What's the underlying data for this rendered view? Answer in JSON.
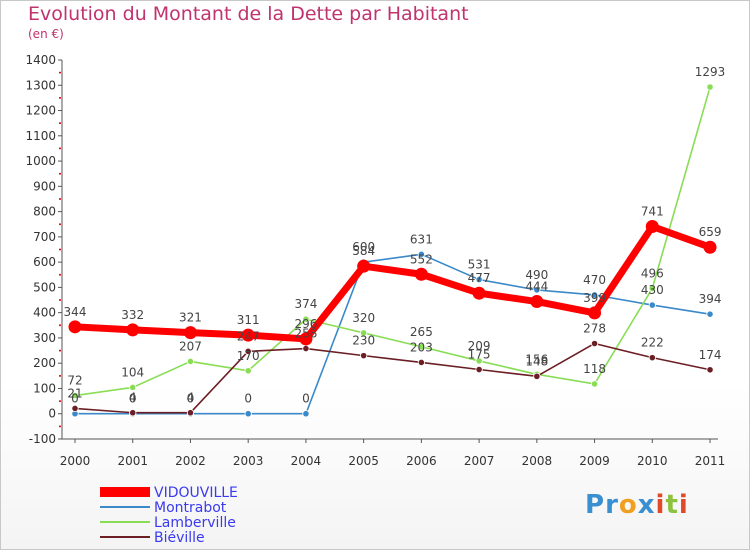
{
  "header": {
    "title": "Evolution du Montant de la Dette par Habitant",
    "subtitle": "(en €)"
  },
  "logo": {
    "text": "Proxiti",
    "letters": [
      "P",
      "r",
      "o",
      "x",
      "i",
      "t",
      "i"
    ],
    "colors": [
      "#3a8fd0",
      "#3a8fd0",
      "#f0a020",
      "#3a8fd0",
      "#e04a2a",
      "#8cc23e",
      "#e04a2a"
    ]
  },
  "chart_data": {
    "type": "line",
    "title": "Evolution du Montant de la Dette par Habitant",
    "subtitle": "(en €)",
    "xlabel": "",
    "ylabel": "",
    "categories": [
      "2000",
      "2001",
      "2002",
      "2003",
      "2004",
      "2005",
      "2006",
      "2007",
      "2008",
      "2009",
      "2010",
      "2011"
    ],
    "ylim": [
      -100,
      1400
    ],
    "yticks": [
      -100,
      0,
      100,
      200,
      300,
      400,
      500,
      600,
      700,
      800,
      900,
      1000,
      1100,
      1200,
      1300,
      1400
    ],
    "grid": false,
    "legend_position": "bottom-left",
    "series": [
      {
        "name": "VIDOUVILLE",
        "color": "#ff0000",
        "values": [
          344,
          332,
          321,
          311,
          296,
          584,
          552,
          477,
          444,
          399,
          741,
          659
        ]
      },
      {
        "name": "Montrabot",
        "color": "#3a89c9",
        "values": [
          0,
          0,
          0,
          0,
          0,
          600,
          631,
          531,
          490,
          470,
          430,
          394
        ]
      },
      {
        "name": "Lamberville",
        "color": "#88dd55",
        "values": [
          72,
          104,
          207,
          170,
          374,
          320,
          265,
          209,
          156,
          118,
          496,
          1293
        ]
      },
      {
        "name": "Biéville",
        "color": "#6b1f24",
        "values": [
          21,
          4,
          4,
          247,
          258,
          230,
          203,
          175,
          148,
          278,
          222,
          174
        ]
      }
    ]
  }
}
